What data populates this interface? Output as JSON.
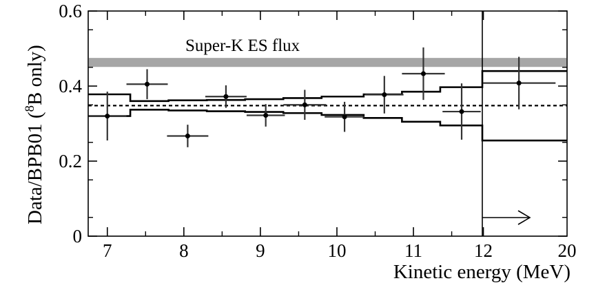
{
  "chart_data": {
    "type": "scatter",
    "xlabel": "Kinetic energy (MeV)",
    "ylabel_main": "Data/BPB01 (",
    "ylabel_sup": "8",
    "ylabel_tail": "B only)",
    "ylim": [
      0,
      0.6
    ],
    "y_ticks": [
      "0",
      "0.2",
      "0.4",
      "0.6"
    ],
    "x_ticks": [
      "7",
      "8",
      "9",
      "10",
      "11",
      "12",
      "20"
    ],
    "x_segments": [
      {
        "from": 6.75,
        "to": 11.9
      },
      {
        "from": 11.9,
        "to": 20,
        "note": "last bin: 11.9 to 20 MeV"
      }
    ],
    "band": {
      "label": "Super-K ES flux",
      "y_low": 0.451,
      "y_high": 0.475,
      "color": "#a6a6a6"
    },
    "expected_level": 0.348,
    "points": [
      {
        "x": 7.0,
        "y": 0.32,
        "xerr": 0.25,
        "yerr": 0.065
      },
      {
        "x": 7.52,
        "y": 0.405,
        "xerr": 0.27,
        "yerr": 0.04
      },
      {
        "x": 8.05,
        "y": 0.267,
        "xerr": 0.27,
        "yerr": 0.03
      },
      {
        "x": 8.55,
        "y": 0.372,
        "xerr": 0.27,
        "yerr": 0.03
      },
      {
        "x": 9.07,
        "y": 0.322,
        "xerr": 0.25,
        "yerr": 0.03
      },
      {
        "x": 9.58,
        "y": 0.35,
        "xerr": 0.28,
        "yerr": 0.04
      },
      {
        "x": 10.1,
        "y": 0.318,
        "xerr": 0.26,
        "yerr": 0.04
      },
      {
        "x": 10.62,
        "y": 0.377,
        "xerr": 0.25,
        "yerr": 0.05
      },
      {
        "x": 11.13,
        "y": 0.433,
        "xerr": 0.28,
        "yerr": 0.07
      },
      {
        "x": 11.63,
        "y": 0.332,
        "xerr": 0.25,
        "yerr": 0.075
      },
      {
        "x": 15.4,
        "y": 0.408,
        "xerr": 3.5,
        "yerr": 0.07
      }
    ],
    "systematic_band": {
      "edges": [
        6.75,
        7.3,
        7.8,
        8.3,
        8.8,
        9.3,
        9.8,
        10.35,
        10.85,
        11.35,
        11.9,
        20
      ],
      "upper": [
        0.378,
        0.36,
        0.362,
        0.363,
        0.365,
        0.368,
        0.372,
        0.378,
        0.385,
        0.397,
        0.44
      ],
      "lower": [
        0.32,
        0.337,
        0.335,
        0.333,
        0.331,
        0.328,
        0.323,
        0.315,
        0.305,
        0.295,
        0.255
      ]
    },
    "threshold_arrow": "→"
  }
}
